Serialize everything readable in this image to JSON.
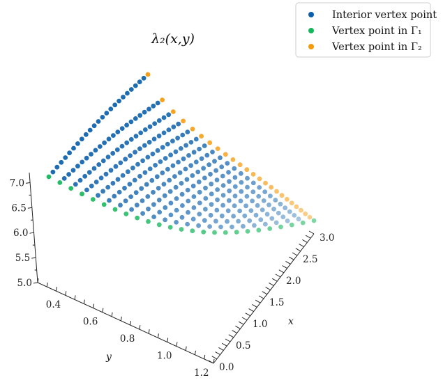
{
  "chart_data": {
    "type": "scatter",
    "title": "λ₂(x,y)",
    "xlabel": "x",
    "ylabel": "y",
    "zlabel": "",
    "xlim": [
      0.0,
      3.0
    ],
    "ylim": [
      0.3,
      1.25
    ],
    "zlim": [
      5.0,
      7.2
    ],
    "x_ticks": [
      "0.0",
      "0.5",
      "1.0",
      "1.5",
      "2.0",
      "2.5",
      "3.0"
    ],
    "y_ticks": [
      "0.4",
      "0.6",
      "0.8",
      "1.0",
      "1.2"
    ],
    "z_ticks": [
      "5.0",
      "5.5",
      "6.0",
      "6.5",
      "7.0"
    ],
    "grid": false,
    "legend_position": "top-right",
    "series": [
      {
        "name": "Interior vertex point",
        "color": "#0a5fab"
      },
      {
        "name": "Vertex point in Γ₁",
        "color": "#14b75a"
      },
      {
        "name": "Vertex point in Γ₂",
        "color": "#f59a0c"
      }
    ]
  }
}
